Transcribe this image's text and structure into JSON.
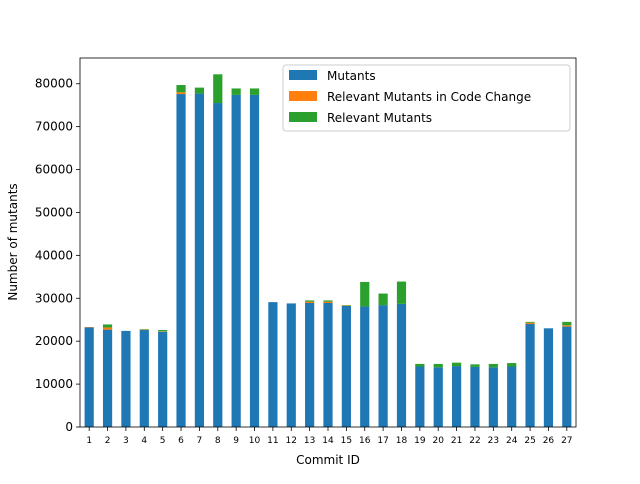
{
  "chart_data": {
    "type": "bar",
    "stacked": true,
    "title": "",
    "xlabel": "Commit ID",
    "ylabel": "Number of mutants",
    "ylim": [
      0,
      86000
    ],
    "yticks": [
      0,
      10000,
      20000,
      30000,
      40000,
      50000,
      60000,
      70000,
      80000
    ],
    "grid": false,
    "legend_position": "top-right",
    "categories": [
      "1",
      "2",
      "3",
      "4",
      "5",
      "6",
      "7",
      "8",
      "9",
      "10",
      "11",
      "12",
      "13",
      "14",
      "15",
      "16",
      "17",
      "18",
      "19",
      "20",
      "21",
      "22",
      "23",
      "24",
      "25",
      "26",
      "27"
    ],
    "series": [
      {
        "name": "Mutants",
        "color": "#1f77b4",
        "values": [
          23200,
          22700,
          22400,
          22600,
          22200,
          77600,
          77700,
          75500,
          77400,
          77400,
          29100,
          28800,
          28900,
          28900,
          28200,
          28100,
          28400,
          28700,
          14100,
          13900,
          14200,
          14000,
          13900,
          14100,
          24000,
          23000,
          23400
        ]
      },
      {
        "name": "Relevant Mutants in Code Change",
        "color": "#ff7f0e",
        "values": [
          100,
          500,
          0,
          100,
          100,
          400,
          0,
          0,
          0,
          0,
          0,
          0,
          300,
          300,
          100,
          0,
          0,
          0,
          0,
          0,
          0,
          0,
          0,
          0,
          300,
          0,
          300
        ]
      },
      {
        "name": "Relevant Mutants",
        "color": "#2ca02c",
        "values": [
          0,
          700,
          0,
          100,
          300,
          1700,
          1400,
          6700,
          1500,
          1500,
          0,
          0,
          300,
          300,
          100,
          5700,
          2700,
          5200,
          600,
          800,
          800,
          600,
          800,
          800,
          200,
          0,
          800
        ]
      }
    ]
  }
}
